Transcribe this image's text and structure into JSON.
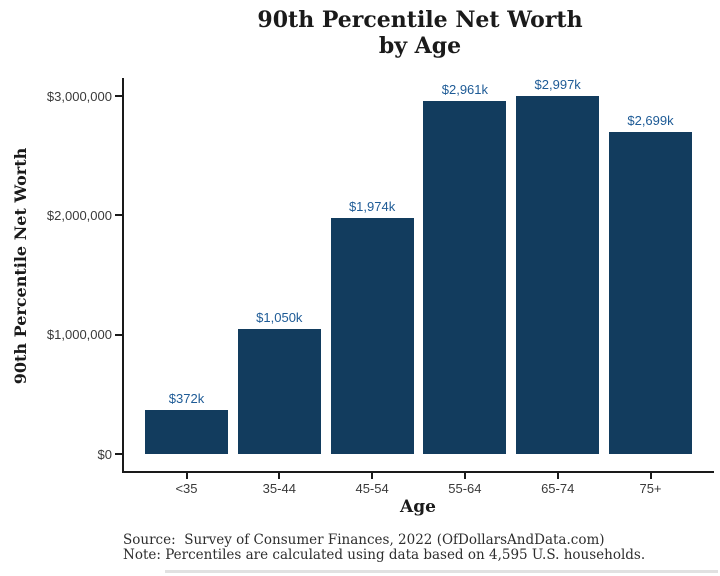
{
  "page": {
    "title_line1": "90th Percentile Net Worth",
    "title_line2": "by Age"
  },
  "chart_data": {
    "type": "bar",
    "title": "90th Percentile Net Worth by Age",
    "categories": [
      "<35",
      "35-44",
      "45-54",
      "55-64",
      "65-74",
      "75+"
    ],
    "values": [
      372000,
      1050000,
      1974000,
      2961000,
      2997000,
      2699000
    ],
    "bar_labels": [
      "$372k",
      "$1,050k",
      "$1,974k",
      "$2,961k",
      "$2,997k",
      "$2,699k"
    ],
    "xlabel": "Age",
    "ylabel": "90th Percentile Net Worth",
    "ylim": [
      0,
      3000000
    ],
    "yticks": [
      0,
      1000000,
      2000000,
      3000000
    ],
    "ytick_labels": [
      "$0",
      "$1,000,000",
      "$2,000,000",
      "$3,000,000"
    ],
    "grid": false,
    "legend": false,
    "bar_color": "#123c5e",
    "bar_label_color": "#1e5b96",
    "axis_color": "#1a1a1a"
  },
  "footer": {
    "source": "Source:  Survey of Consumer Finances, 2022 (OfDollarsAndData.com)",
    "note": "Note: Percentiles are calculated using data based on 4,595 U.S. households."
  }
}
